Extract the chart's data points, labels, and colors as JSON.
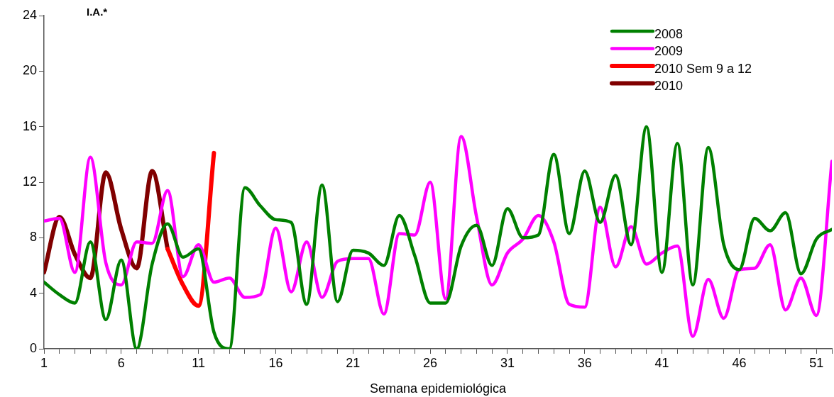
{
  "chart_data": {
    "type": "line",
    "ylabel": "I.A.*",
    "xlabel": "Semana epidemiológica",
    "x": [
      1,
      2,
      3,
      4,
      5,
      6,
      7,
      8,
      9,
      10,
      11,
      12,
      13,
      14,
      15,
      16,
      17,
      18,
      19,
      20,
      21,
      22,
      23,
      24,
      25,
      26,
      27,
      28,
      29,
      30,
      31,
      32,
      33,
      34,
      35,
      36,
      37,
      38,
      39,
      40,
      41,
      42,
      43,
      44,
      45,
      46,
      47,
      48,
      49,
      50,
      51,
      52
    ],
    "series": [
      {
        "name": "2008",
        "color": "#008000",
        "values": [
          4.8,
          3.9,
          3.3,
          7.7,
          2.1,
          6.4,
          0,
          6.1,
          9.0,
          6.6,
          7.2,
          1.2,
          0,
          11.6,
          10.3,
          9.3,
          9.1,
          3.2,
          11.8,
          3.4,
          7.1,
          6.9,
          6.0,
          9.6,
          6.7,
          3.3,
          3.3,
          7.4,
          8.9,
          6.0,
          10.1,
          8.0,
          8.2,
          14.0,
          8.3,
          12.8,
          9.1,
          12.5,
          7.5,
          16.0,
          5.5,
          14.8,
          4.6,
          14.5,
          7.5,
          5.7,
          9.4,
          8.5,
          9.8,
          5.4,
          7.9,
          8.6
        ]
      },
      {
        "name": "2009",
        "color": "#ff00ff",
        "values": [
          9.2,
          9.4,
          5.5,
          13.8,
          6.2,
          4.6,
          7.7,
          7.6,
          11.4,
          5.2,
          7.5,
          4.8,
          5.1,
          3.7,
          3.9,
          8.7,
          4.1,
          7.7,
          3.7,
          6.3,
          6.5,
          6.5,
          2.5,
          8.3,
          8.2,
          12.0,
          3.6,
          15.3,
          9.5,
          4.6,
          6.9,
          7.9,
          9.6,
          7.7,
          3.2,
          3.0,
          10.2,
          5.9,
          8.8,
          6.1,
          6.9,
          7.4,
          0.9,
          5.0,
          2.2,
          5.7,
          5.8,
          7.5,
          2.8,
          5.1,
          2.4,
          13.5
        ]
      },
      {
        "name": "2010 Sem 9 a 12",
        "color": "#ff0000",
        "x": [
          9,
          10,
          11,
          12
        ],
        "values": [
          7.2,
          4.6,
          3.1,
          14.1
        ]
      },
      {
        "name": "2010",
        "color": "#800000",
        "x": [
          1,
          2,
          3,
          4,
          5,
          6,
          7,
          8,
          9
        ],
        "values": [
          5.5,
          9.5,
          6.8,
          5.1,
          12.7,
          8.6,
          5.8,
          12.8,
          7.2
        ]
      }
    ],
    "xlim": [
      1,
      52
    ],
    "xticks": [
      {
        "value": 1,
        "label": "1"
      },
      {
        "value": 2,
        "label": null
      },
      {
        "value": 3,
        "label": null
      },
      {
        "value": 4,
        "label": null
      },
      {
        "value": 5,
        "label": null
      },
      {
        "value": 6,
        "label": "6"
      },
      {
        "value": 7,
        "label": null
      },
      {
        "value": 8,
        "label": null
      },
      {
        "value": 9,
        "label": null
      },
      {
        "value": 10,
        "label": null
      },
      {
        "value": 11,
        "label": "11"
      },
      {
        "value": 12,
        "label": null
      },
      {
        "value": 13,
        "label": null
      },
      {
        "value": 14,
        "label": null
      },
      {
        "value": 15,
        "label": null
      },
      {
        "value": 16,
        "label": "16"
      },
      {
        "value": 17,
        "label": null
      },
      {
        "value": 18,
        "label": null
      },
      {
        "value": 19,
        "label": null
      },
      {
        "value": 20,
        "label": null
      },
      {
        "value": 21,
        "label": "21"
      },
      {
        "value": 22,
        "label": null
      },
      {
        "value": 23,
        "label": null
      },
      {
        "value": 24,
        "label": null
      },
      {
        "value": 25,
        "label": null
      },
      {
        "value": 26,
        "label": "26"
      },
      {
        "value": 27,
        "label": null
      },
      {
        "value": 28,
        "label": null
      },
      {
        "value": 29,
        "label": null
      },
      {
        "value": 30,
        "label": null
      },
      {
        "value": 31,
        "label": "31"
      },
      {
        "value": 32,
        "label": null
      },
      {
        "value": 33,
        "label": null
      },
      {
        "value": 34,
        "label": null
      },
      {
        "value": 35,
        "label": null
      },
      {
        "value": 36,
        "label": "36"
      },
      {
        "value": 37,
        "label": null
      },
      {
        "value": 38,
        "label": null
      },
      {
        "value": 39,
        "label": null
      },
      {
        "value": 40,
        "label": null
      },
      {
        "value": 41,
        "label": "41"
      },
      {
        "value": 42,
        "label": null
      },
      {
        "value": 43,
        "label": null
      },
      {
        "value": 44,
        "label": null
      },
      {
        "value": 45,
        "label": null
      },
      {
        "value": 46,
        "label": "46"
      },
      {
        "value": 47,
        "label": null
      },
      {
        "value": 48,
        "label": null
      },
      {
        "value": 49,
        "label": null
      },
      {
        "value": 50,
        "label": null
      },
      {
        "value": 51,
        "label": "51"
      },
      {
        "value": 52,
        "label": null
      }
    ],
    "ylim": [
      0,
      24
    ],
    "yticks": [
      0,
      4,
      8,
      12,
      16,
      20,
      24
    ],
    "grid": false,
    "legend": "top right",
    "marker": "none",
    "line_style": "solid"
  }
}
